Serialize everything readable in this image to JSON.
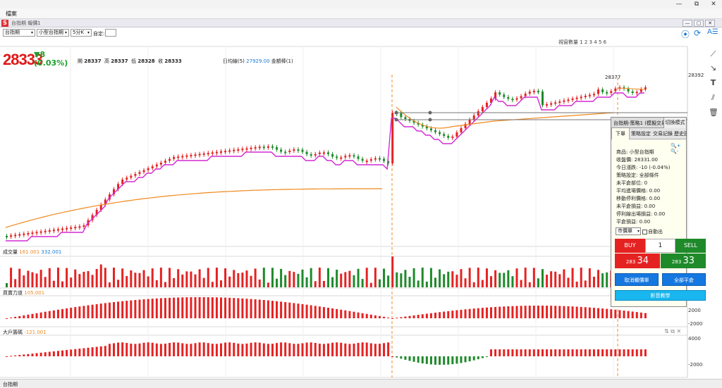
{
  "window": {
    "title": "",
    "minimize": "—",
    "maximize": "⧉",
    "close": "✕"
  },
  "menu": {
    "item": "檔案"
  },
  "subwindow": {
    "title": "台指期 報價1",
    "buttons": [
      "—",
      "▢",
      "✕"
    ]
  },
  "toolbar": {
    "product": "台指期",
    "contract": "小型台指期",
    "period": "5分K",
    "custom_label": "自定:",
    "custom_value": ""
  },
  "window_count": {
    "label": "視窗數量",
    "values": "1 2 3 4 5 6"
  },
  "quote": {
    "price": "28333",
    "change": "▼8",
    "change_pct": "(0.03%)",
    "open_label": "開",
    "open": "28337",
    "high_label": "高",
    "high": "28337",
    "low_label": "低",
    "low": "28328",
    "close_label": "收",
    "close": "28333"
  },
  "indicator_label": {
    "ma_label": "日均線(5)",
    "ma_value": "27929.00",
    "bar_label": "金額棒(1)"
  },
  "axis": {
    "price_top": "28392",
    "peak": "28377"
  },
  "panels": {
    "volume": {
      "label": "成交量",
      "v1": "161.001",
      "v2": "332.001"
    },
    "buysell": {
      "label": "買賣力道",
      "v1": "105.001",
      "ax_top": "2000",
      "ax_bot": "-2000"
    },
    "big": {
      "label": "大戶籌碼",
      "v1": "-121.001",
      "ax_top": "4000",
      "ax_bot": "-2000"
    }
  },
  "status_bar": {
    "tab": "台指期"
  },
  "trade_panel": {
    "title": "台指期-策略1 (模擬交易)",
    "switch_mode": "切換模式",
    "tabs": [
      "下單",
      "策略設定",
      "交易記錄",
      "歷史回測"
    ],
    "zoom_in": "🔍+",
    "zoom_out": "🔍-",
    "info": [
      "商品: 小型台指期",
      "收盤價: 28331.00",
      "今日漲跌: -10 (-0.04%)",
      "策略設定: 全部條件",
      "未平倉部位: 0",
      "平均進場價格: 0.00",
      "移動停利價格: 0.00",
      "未平倉損益: 0.00",
      "停利線出場損益: 0.00",
      "平倉損益: 0.00"
    ],
    "order_type": "市價單",
    "auto_exit": "自動出",
    "buy_label": "BUY",
    "sell_label": "SELL",
    "quantity": "1",
    "buy_quote_prefix": "283",
    "buy_quote_suffix": "34",
    "sell_quote_prefix": "283",
    "sell_quote_suffix": "33",
    "cancel_trigger": "取消觸價單",
    "flatten_all": "全部平倉",
    "video_tutorial": "影音教學"
  },
  "colors": {
    "up": "#e52222",
    "down": "#1f8a2a",
    "ma": "#d22ad2",
    "long_ma": "#f0881c",
    "accent": "#1577e0"
  }
}
